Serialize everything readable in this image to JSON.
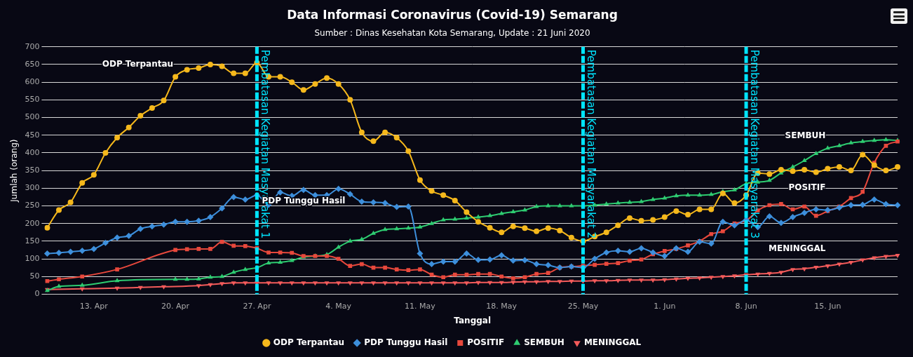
{
  "chart_data": {
    "type": "line",
    "title": "Data Informasi Coronavirus (Covid-19) Semarang",
    "subtitle": "Sumber : Dinas Kesehatan Kota Semarang, Update : 21 Juni 2020",
    "x_label": "Tanggal",
    "y_label": "Jumlah (orang)",
    "categories": [
      null,
      null,
      null,
      null,
      "13. Apr",
      null,
      null,
      null,
      null,
      null,
      null,
      "20. Apr",
      null,
      null,
      null,
      null,
      null,
      null,
      "27. Apr",
      null,
      null,
      null,
      null,
      null,
      null,
      "4. May",
      null,
      null,
      null,
      null,
      null,
      null,
      "11. May",
      null,
      null,
      null,
      null,
      null,
      null,
      "18. May",
      null,
      null,
      null,
      null,
      null,
      null,
      "25. May",
      null,
      null,
      null,
      null,
      null,
      null,
      "1. Jun",
      null,
      null,
      null,
      null,
      null,
      null,
      "8. Jun",
      null,
      null,
      null,
      null,
      null,
      null,
      "15. Jun",
      null,
      null,
      null,
      null,
      null,
      null
    ],
    "series": [
      {
        "name": "ODP Terpantau",
        "color": "#f5b81c",
        "marker": "circle",
        "values": [
          188,
          238,
          260,
          315,
          338,
          400,
          443,
          472,
          505,
          527,
          548,
          615,
          635,
          640,
          650,
          645,
          625,
          625,
          655,
          615,
          615,
          600,
          578,
          595,
          612,
          595,
          550,
          458,
          433,
          458,
          443,
          405,
          323,
          292,
          280,
          265,
          232,
          205,
          188,
          175,
          192,
          187,
          178,
          187,
          180,
          160,
          150,
          163,
          175,
          195,
          215,
          208,
          210,
          218,
          235,
          225,
          240,
          240,
          285,
          258,
          280,
          343,
          340,
          352,
          348,
          352,
          345,
          355,
          360,
          350,
          395,
          365,
          350,
          360
        ]
      },
      {
        "name": "PDP Tunggu Hasil",
        "color": "#3d8fdc",
        "marker": "diamond",
        "values": [
          115,
          117,
          120,
          123,
          128,
          145,
          160,
          165,
          185,
          192,
          197,
          205,
          205,
          208,
          218,
          243,
          275,
          268,
          280,
          253,
          288,
          278,
          295,
          280,
          280,
          298,
          283,
          262,
          260,
          258,
          247,
          248,
          115,
          85,
          92,
          92,
          115,
          97,
          98,
          110,
          95,
          96,
          85,
          82,
          75,
          78,
          75,
          100,
          118,
          123,
          120,
          130,
          118,
          108,
          130,
          120,
          148,
          143,
          205,
          195,
          210,
          190,
          220,
          202,
          218,
          230,
          240,
          238,
          245,
          252,
          253,
          268,
          255,
          252
        ]
      },
      {
        "name": "POSITIF",
        "color": "#e8483c",
        "marker": "square",
        "values": [
          37,
          42,
          null,
          50,
          null,
          null,
          70,
          null,
          null,
          null,
          null,
          125,
          127,
          128,
          128,
          148,
          137,
          136,
          130,
          118,
          118,
          117,
          108,
          108,
          108,
          100,
          80,
          85,
          75,
          75,
          70,
          68,
          70,
          55,
          48,
          55,
          55,
          57,
          57,
          50,
          45,
          48,
          57,
          60,
          75,
          78,
          80,
          83,
          86,
          88,
          95,
          98,
          113,
          122,
          128,
          138,
          150,
          170,
          178,
          200,
          208,
          237,
          252,
          255,
          240,
          248,
          222,
          235,
          248,
          272,
          290,
          372,
          420,
          432
        ]
      },
      {
        "name": "SEMBUH",
        "color": "#2ecc71",
        "marker": "triangle",
        "values": [
          10,
          22,
          null,
          25,
          null,
          null,
          38,
          null,
          null,
          null,
          null,
          42,
          42,
          43,
          48,
          50,
          62,
          70,
          75,
          88,
          90,
          95,
          105,
          108,
          112,
          133,
          150,
          155,
          172,
          183,
          185,
          187,
          190,
          200,
          210,
          212,
          215,
          218,
          222,
          228,
          233,
          238,
          248,
          250,
          250,
          250,
          250,
          252,
          255,
          258,
          260,
          262,
          268,
          272,
          278,
          280,
          280,
          282,
          290,
          295,
          313,
          317,
          322,
          343,
          360,
          378,
          398,
          413,
          420,
          428,
          432,
          435,
          437,
          435
        ]
      },
      {
        "name": "MENINGGAL",
        "color": "#f45b5b",
        "marker": "triangle-down",
        "values": [
          13,
          null,
          null,
          15,
          null,
          null,
          17,
          null,
          19,
          null,
          21,
          null,
          null,
          24,
          27,
          30,
          32,
          32,
          32,
          32,
          32,
          32,
          32,
          32,
          32,
          32,
          32,
          32,
          32,
          32,
          32,
          32,
          32,
          32,
          32,
          32,
          32,
          33,
          33,
          33,
          34,
          35,
          35,
          36,
          36,
          37,
          37,
          38,
          38,
          39,
          40,
          40,
          40,
          41,
          43,
          45,
          46,
          48,
          50,
          52,
          55,
          57,
          59,
          62,
          70,
          72,
          76,
          80,
          85,
          90,
          97,
          103,
          107,
          110
        ]
      }
    ],
    "vertical_lines": [
      {
        "x": "27. Apr",
        "label": "Pembatasan Kegiatan Masyarakat 1"
      },
      {
        "x": "25. May",
        "label": "Pembatasan Kegiatan Masyarakat 2"
      },
      {
        "x": "8. Jun",
        "label": "Pembatasan Kegiatan Masyarakat 3"
      }
    ],
    "annotations": [
      {
        "text": "ODP Terpantau",
        "x": "20. Apr",
        "y": 650
      },
      {
        "text": "PDP Tunggu Hasil",
        "x": "27. Apr",
        "y": 263
      },
      {
        "text": "SEMBUH",
        "x": "15. Jun",
        "y": 448
      },
      {
        "text": "POSITIF",
        "x": "15. Jun",
        "y": 300
      },
      {
        "text": "MENINGGAL",
        "x": "15. Jun",
        "y": 128
      }
    ],
    "ylim": [
      0,
      700
    ],
    "yticks": [
      0,
      50,
      100,
      150,
      200,
      250,
      300,
      350,
      400,
      450,
      500,
      550,
      600,
      650,
      700
    ],
    "grid": true,
    "legend": "bottom"
  }
}
